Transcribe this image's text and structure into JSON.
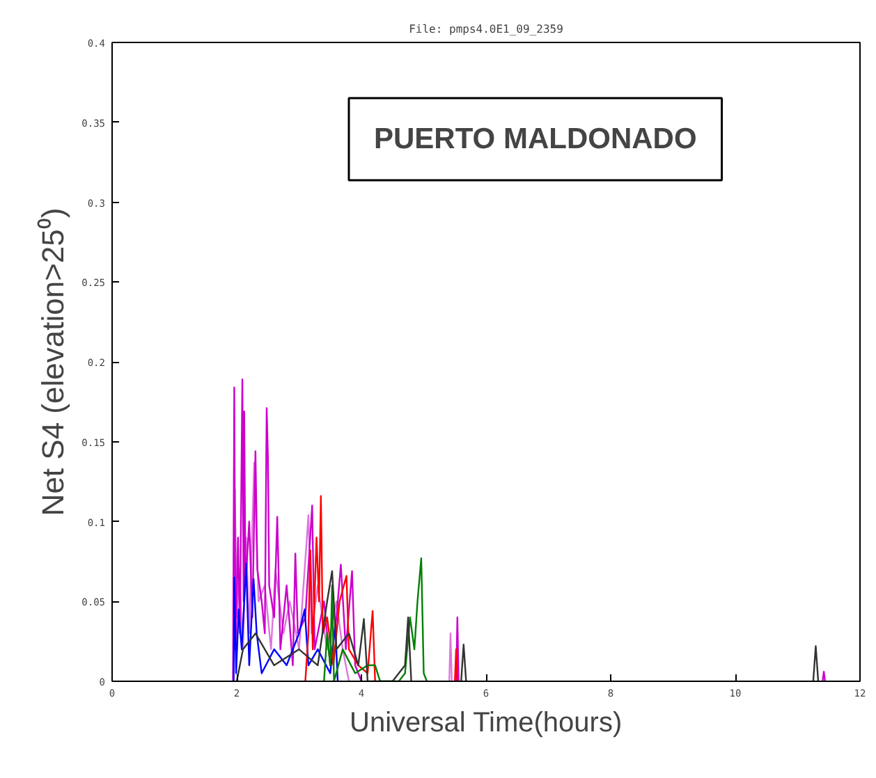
{
  "chart_data": {
    "type": "line",
    "title": "File: pmps4.0E1_09_2359",
    "xlabel": "Universal Time(hours)",
    "ylabel": "Net S4 (elevation>25⁰)",
    "annotations": [
      "PUERTO MALDONADO"
    ],
    "xlim": [
      0,
      12
    ],
    "ylim": [
      0,
      0.4
    ],
    "xticks": [
      0,
      2,
      4,
      6,
      8,
      10,
      12
    ],
    "yticks": [
      0,
      0.05,
      0.1,
      0.15,
      0.2,
      0.25,
      0.3,
      0.35,
      0.4
    ],
    "grid": false,
    "marker": "none",
    "line_style": "solid",
    "series": [
      {
        "color": "#dd77dd",
        "x": [
          1.95,
          1.97,
          2.0,
          2.04,
          2.1,
          2.15,
          2.2,
          2.28,
          2.35,
          2.45,
          2.55,
          2.62,
          2.75,
          2.85,
          3.0,
          3.15,
          3.2,
          3.3,
          3.45,
          3.6,
          3.7,
          3.8,
          5.0,
          5.41,
          5.43,
          5.45
        ],
        "values": [
          0,
          0.12,
          0.04,
          0.07,
          0.02,
          0.09,
          0.03,
          0.137,
          0.05,
          0.06,
          0.02,
          0.07,
          0.03,
          0.05,
          0.02,
          0.104,
          0.03,
          0.06,
          0.02,
          0.05,
          0.02,
          0,
          null,
          0,
          0.03,
          0
        ]
      },
      {
        "color": "#cc00cc",
        "x": [
          1.94,
          1.96,
          1.98,
          2.02,
          2.05,
          2.09,
          2.11,
          2.12,
          2.14,
          2.2,
          2.25,
          2.3,
          2.33,
          2.4,
          2.45,
          2.48,
          2.5,
          2.52,
          2.6,
          2.65,
          2.7,
          2.8,
          2.9,
          2.94,
          2.98,
          3.1,
          3.21,
          3.25,
          3.4,
          3.5,
          3.6,
          3.67,
          3.75,
          3.85,
          3.9,
          4.0,
          5.0,
          5.52,
          5.54,
          5.56,
          8.0,
          11.4,
          11.42,
          11.44
        ],
        "values": [
          0,
          0.184,
          0.02,
          0.09,
          0.03,
          0.189,
          0.05,
          0.169,
          0.06,
          0.1,
          0.04,
          0.144,
          0.07,
          0.05,
          0.03,
          0.171,
          0.141,
          0.06,
          0.04,
          0.103,
          0.02,
          0.06,
          0.01,
          0.08,
          0.03,
          0.04,
          0.11,
          0.02,
          0.05,
          0.01,
          0.04,
          0.073,
          0.02,
          0.069,
          0.01,
          0,
          null,
          0,
          0.04,
          0,
          null,
          0,
          0.006,
          0
        ]
      },
      {
        "color": "#0000ff",
        "x": [
          1.95,
          1.96,
          1.99,
          2.03,
          2.08,
          2.12,
          2.15,
          2.2,
          2.27,
          2.32,
          2.4,
          2.6,
          2.8,
          3.0,
          3.09,
          3.15,
          3.3,
          3.5,
          3.58,
          3.62
        ],
        "values": [
          0,
          0.065,
          0.005,
          0.045,
          0.02,
          0.05,
          0.074,
          0.01,
          0.064,
          0.03,
          0.005,
          0.02,
          0.01,
          0.03,
          0.045,
          0.01,
          0.02,
          0.005,
          0.035,
          0
        ]
      },
      {
        "color": "#ff0000",
        "x": [
          3.1,
          3.15,
          3.18,
          3.22,
          3.28,
          3.32,
          3.35,
          3.38,
          3.45,
          3.55,
          3.65,
          3.76,
          3.8,
          3.95,
          4.1,
          4.18,
          4.22,
          5.0,
          5.5,
          5.52,
          5.54
        ],
        "values": [
          0,
          0.03,
          0.082,
          0.02,
          0.09,
          0.05,
          0.116,
          0.03,
          0.04,
          0.01,
          0.05,
          0.066,
          0.02,
          0.01,
          0.005,
          0.044,
          0,
          null,
          0,
          0.02,
          0
        ]
      },
      {
        "color": "#008000",
        "x": [
          3.4,
          3.45,
          3.5,
          3.53,
          3.56,
          3.7,
          3.9,
          4.1,
          4.22,
          4.3,
          4.6,
          4.7,
          4.78,
          4.85,
          4.9,
          4.96,
          5.0,
          5.05
        ],
        "values": [
          0,
          0.03,
          0.01,
          0.06,
          0,
          0.02,
          0.005,
          0.01,
          0.01,
          0,
          0,
          0.005,
          0.04,
          0.02,
          0.05,
          0.077,
          0.005,
          0
        ]
      },
      {
        "color": "#333333",
        "x": [
          2.0,
          2.1,
          2.3,
          2.6,
          3.0,
          3.3,
          3.45,
          3.53,
          3.6,
          3.8,
          3.95,
          4.04,
          4.1,
          4.5,
          4.7,
          4.75,
          4.8,
          5.2,
          5.6,
          5.64,
          5.68,
          8.0,
          11.25,
          11.29,
          11.33
        ],
        "values": [
          0,
          0.02,
          0.03,
          0.01,
          0.02,
          0.01,
          0.05,
          0.069,
          0.02,
          0.03,
          0.01,
          0.039,
          0,
          0,
          0.01,
          0.04,
          0,
          null,
          0,
          0.023,
          0,
          null,
          0,
          0.022,
          0
        ]
      }
    ]
  }
}
